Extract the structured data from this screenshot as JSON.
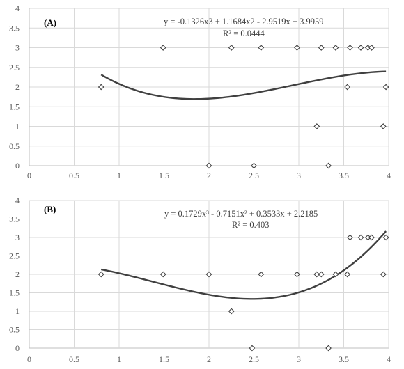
{
  "chart_data": [
    {
      "type": "scatter",
      "panel_label": "(A)",
      "trendline": {
        "equation": "y = -0.1326x3 + 1.1684x2 - 2.9519x + 3.9959",
        "r2_label": "R² = 0.0444",
        "coefficients": [
          -0.1326,
          1.1684,
          -2.9519,
          3.9959
        ],
        "x_range": [
          0.8,
          3.97
        ]
      },
      "xlim": [
        0,
        4
      ],
      "ylim": [
        0,
        4
      ],
      "x_ticks": [
        "0",
        "0.5",
        "1",
        "1.5",
        "2",
        "2.5",
        "3",
        "3.5",
        "4"
      ],
      "y_ticks": [
        "0",
        "0.5",
        "1",
        "1.5",
        "2",
        "2.5",
        "3",
        "3.5",
        "4"
      ],
      "grid": true,
      "points": [
        {
          "x": 0.8,
          "y": 2
        },
        {
          "x": 1.49,
          "y": 3
        },
        {
          "x": 2.0,
          "y": 0
        },
        {
          "x": 2.25,
          "y": 3
        },
        {
          "x": 2.5,
          "y": 0
        },
        {
          "x": 2.58,
          "y": 3
        },
        {
          "x": 2.98,
          "y": 3
        },
        {
          "x": 3.2,
          "y": 1
        },
        {
          "x": 3.25,
          "y": 3
        },
        {
          "x": 3.33,
          "y": 0
        },
        {
          "x": 3.41,
          "y": 3
        },
        {
          "x": 3.54,
          "y": 2
        },
        {
          "x": 3.57,
          "y": 3
        },
        {
          "x": 3.69,
          "y": 3
        },
        {
          "x": 3.77,
          "y": 3
        },
        {
          "x": 3.81,
          "y": 3
        },
        {
          "x": 3.94,
          "y": 1
        },
        {
          "x": 3.97,
          "y": 2
        }
      ]
    },
    {
      "type": "scatter",
      "panel_label": "(B)",
      "trendline": {
        "equation": "y = 0.1729x³ - 0.7151x² + 0.3533x + 2.2185",
        "r2_label": "R² = 0.403",
        "coefficients": [
          0.1729,
          -0.7151,
          0.3533,
          2.2185
        ],
        "x_range": [
          0.8,
          3.97
        ]
      },
      "xlim": [
        0,
        4
      ],
      "ylim": [
        0,
        4
      ],
      "x_ticks": [
        "0",
        "0.5",
        "1",
        "1.5",
        "2",
        "2.5",
        "3",
        "3.5",
        "4"
      ],
      "y_ticks": [
        "0",
        "0.5",
        "1",
        "1.5",
        "2",
        "2.5",
        "3",
        "3.5",
        "4"
      ],
      "grid": true,
      "points": [
        {
          "x": 0.8,
          "y": 2
        },
        {
          "x": 1.49,
          "y": 2
        },
        {
          "x": 2.0,
          "y": 2
        },
        {
          "x": 2.25,
          "y": 1
        },
        {
          "x": 2.48,
          "y": 0
        },
        {
          "x": 2.58,
          "y": 2
        },
        {
          "x": 2.98,
          "y": 2
        },
        {
          "x": 3.2,
          "y": 2
        },
        {
          "x": 3.25,
          "y": 2
        },
        {
          "x": 3.33,
          "y": 0
        },
        {
          "x": 3.41,
          "y": 2
        },
        {
          "x": 3.54,
          "y": 2
        },
        {
          "x": 3.57,
          "y": 3
        },
        {
          "x": 3.69,
          "y": 3
        },
        {
          "x": 3.77,
          "y": 3
        },
        {
          "x": 3.81,
          "y": 3
        },
        {
          "x": 3.94,
          "y": 2
        },
        {
          "x": 3.97,
          "y": 3
        }
      ]
    }
  ]
}
